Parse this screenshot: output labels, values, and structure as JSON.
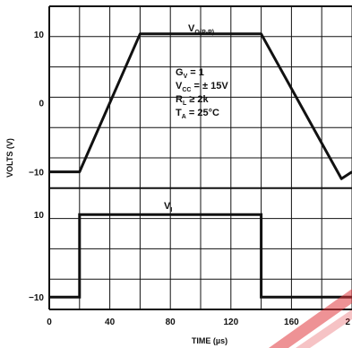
{
  "chart_data": [
    {
      "type": "line",
      "name": "output",
      "series_label": {
        "main": "V",
        "sub": "O(P-P)"
      },
      "x": [
        0,
        20,
        60,
        140,
        193,
        200
      ],
      "values": [
        -10,
        -10,
        10,
        10,
        -11,
        -10
      ],
      "ylim": [
        -12,
        14
      ],
      "y_ticks": [
        "10",
        "0",
        "−10"
      ],
      "ylabel": "VOLTS (V)",
      "annotations": [
        {
          "main": "G",
          "sub": "V",
          "rest": " = 1"
        },
        {
          "main": "V",
          "sub": "CC",
          "rest": " = ± 15V"
        },
        {
          "main": "R",
          "sub": "L",
          "rest": " ≥ 2k"
        },
        {
          "main": "T",
          "sub": "A",
          "rest": " = 25°C"
        }
      ]
    },
    {
      "type": "line",
      "name": "input",
      "series_label": {
        "main": "V",
        "sub": "I"
      },
      "x": [
        0,
        20,
        20,
        140,
        140,
        200
      ],
      "values": [
        -10,
        -10,
        10,
        10,
        -10,
        -10
      ],
      "ylim": [
        -13,
        17
      ],
      "y_ticks": [
        "10",
        "−10"
      ]
    }
  ],
  "x_ticks": [
    "0",
    "40",
    "80",
    "120",
    "160",
    "2"
  ],
  "xlabel": "TIME (µs)",
  "colors": {
    "line": "#111111",
    "grid": "#111111",
    "watermark": "#e0393e"
  }
}
